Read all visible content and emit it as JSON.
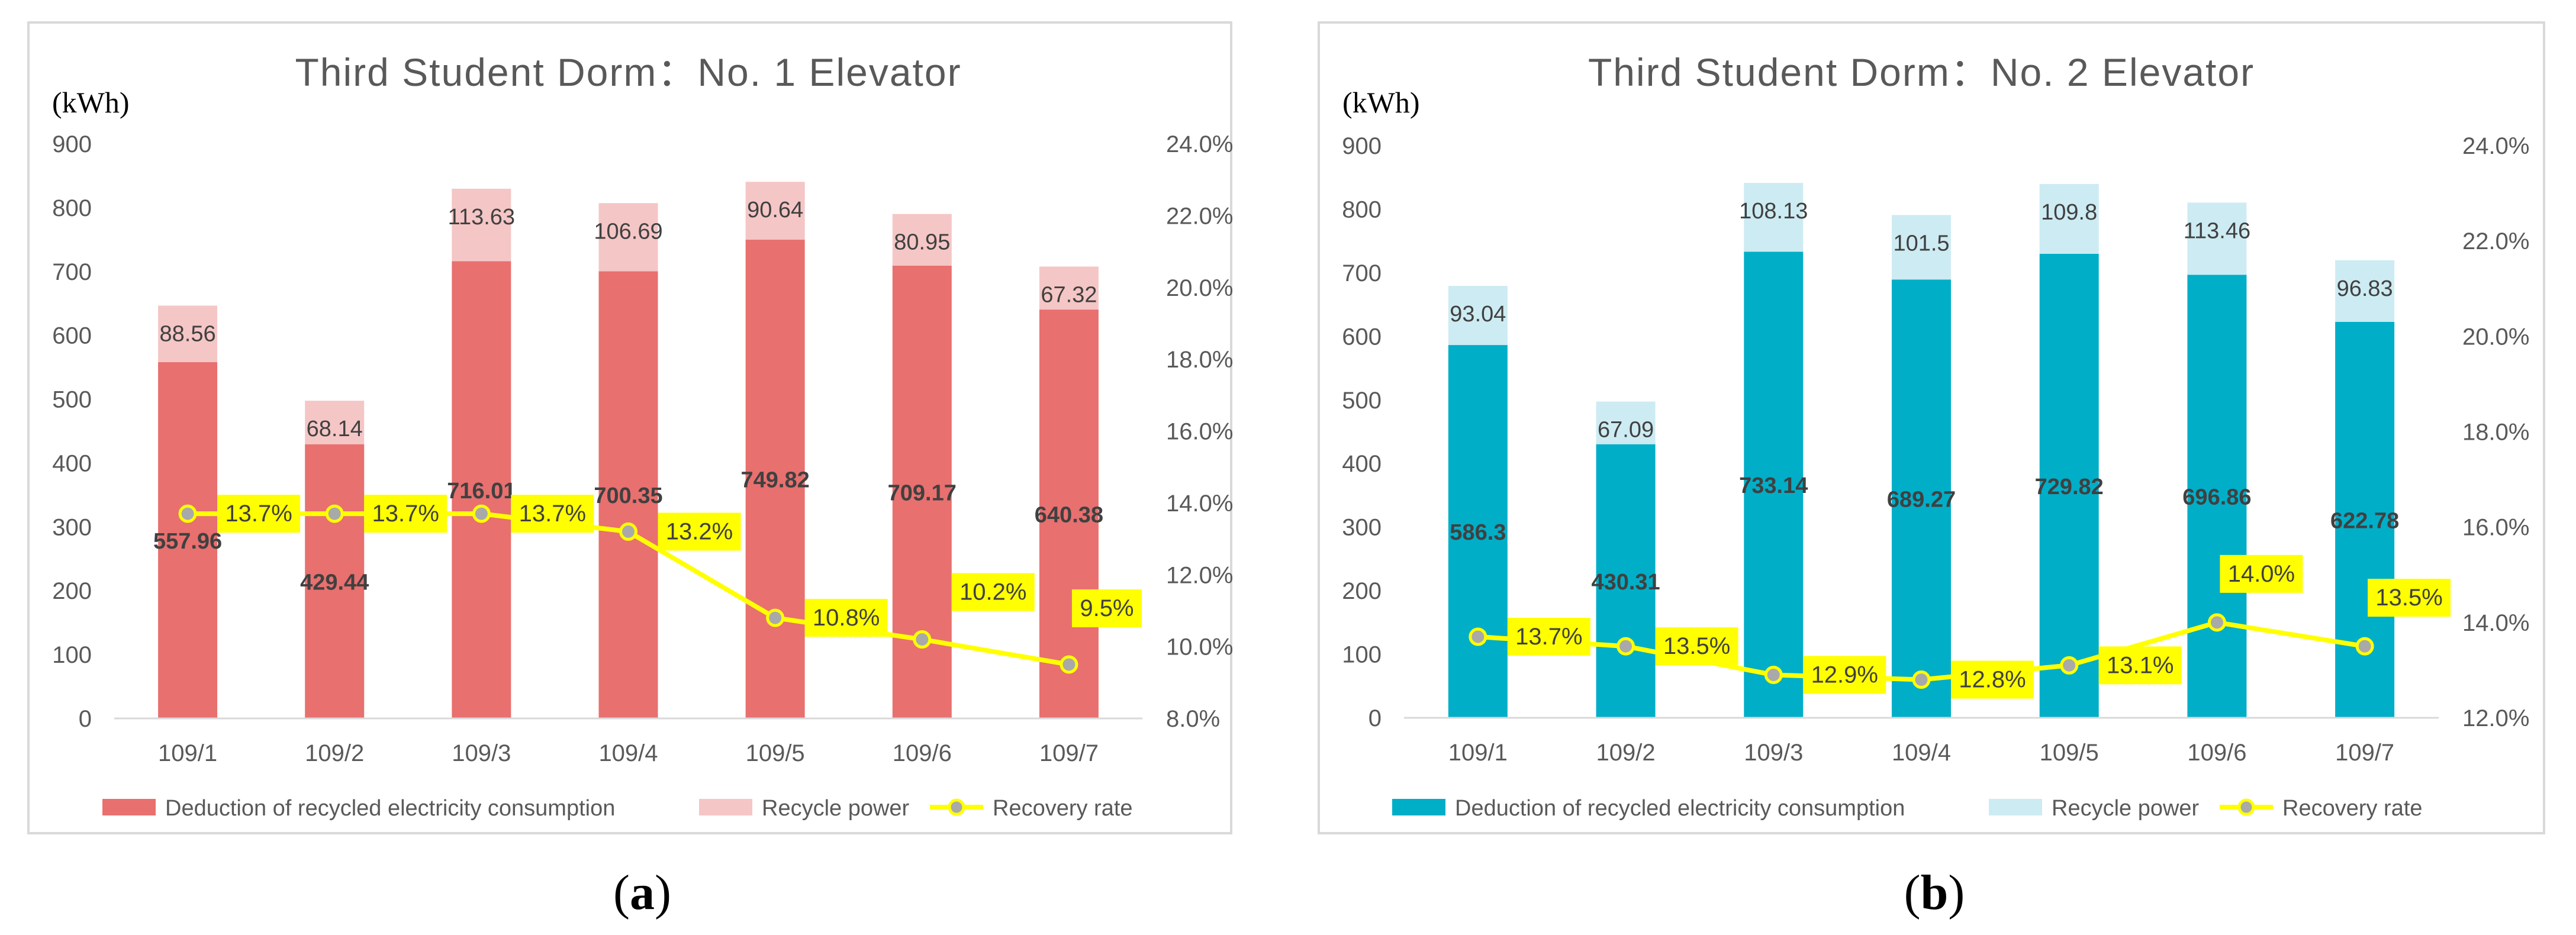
{
  "chart_data": [
    {
      "type": "bar",
      "stacked": true,
      "title": "Third Student Dorm：No. 1 Elevator",
      "ylabel": "(kWh)",
      "categories": [
        "109/1",
        "109/2",
        "109/3",
        "109/4",
        "109/5",
        "109/6",
        "109/7"
      ],
      "ylim": [
        0,
        900
      ],
      "yticks": [
        "0",
        "100",
        "200",
        "300",
        "400",
        "500",
        "600",
        "700",
        "800",
        "900"
      ],
      "y2lim": [
        8.0,
        24.0
      ],
      "y2ticks": [
        "8.0%",
        "10.0%",
        "12.0%",
        "14.0%",
        "16.0%",
        "18.0%",
        "20.0%",
        "22.0%",
        "24.0%"
      ],
      "series": [
        {
          "name": "Deduction of recycled electricity consumption",
          "values": [
            557.96,
            429.44,
            716.01,
            700.35,
            749.82,
            709.17,
            640.38
          ],
          "labels": [
            "557.96",
            "429.44",
            "716.01",
            "700.35",
            "749.82",
            "709.17",
            "640.38"
          ],
          "color": "#e8706f"
        },
        {
          "name": "Recycle power",
          "values": [
            88.56,
            68.14,
            113.63,
            106.69,
            90.64,
            80.95,
            67.32
          ],
          "labels": [
            "88.56",
            "68.14",
            "113.63",
            "106.69",
            "90.64",
            "80.95",
            "67.32"
          ],
          "color": "#f5c6c6"
        },
        {
          "name": "Recovery rate",
          "type": "line",
          "axis": "right",
          "values": [
            13.7,
            13.7,
            13.7,
            13.2,
            10.8,
            10.2,
            9.5
          ],
          "labels": [
            "13.7%",
            "13.7%",
            "13.7%",
            "13.2%",
            "10.8%",
            "10.2%",
            "9.5%"
          ],
          "color": "#ffff00"
        }
      ],
      "panel_label": "a"
    },
    {
      "type": "bar",
      "stacked": true,
      "title": "Third Student Dorm：No. 2 Elevator",
      "ylabel": "(kWh)",
      "categories": [
        "109/1",
        "109/2",
        "109/3",
        "109/4",
        "109/5",
        "109/6",
        "109/7"
      ],
      "ylim": [
        0,
        900
      ],
      "yticks": [
        "0",
        "100",
        "200",
        "300",
        "400",
        "500",
        "600",
        "700",
        "800",
        "900"
      ],
      "y2lim": [
        12.0,
        24.0
      ],
      "y2ticks": [
        "12.0%",
        "14.0%",
        "16.0%",
        "18.0%",
        "20.0%",
        "22.0%",
        "24.0%"
      ],
      "series": [
        {
          "name": "Deduction of recycled electricity consumption",
          "values": [
            586.3,
            430.31,
            733.14,
            689.27,
            729.82,
            696.86,
            622.78
          ],
          "labels": [
            "586.3",
            "430.31",
            "733.14",
            "689.27",
            "729.82",
            "696.86",
            "622.78"
          ],
          "color": "#00aec8"
        },
        {
          "name": "Recycle power",
          "values": [
            93.04,
            67.09,
            108.13,
            101.5,
            109.8,
            113.46,
            96.83
          ],
          "labels": [
            "93.04",
            "67.09",
            "108.13",
            "101.5",
            "109.8",
            "113.46",
            "96.83"
          ],
          "color": "#cdebf2"
        },
        {
          "name": "Recovery rate",
          "type": "line",
          "axis": "right",
          "values": [
            13.7,
            13.5,
            12.9,
            12.8,
            13.1,
            14.0,
            13.5
          ],
          "labels": [
            "13.7%",
            "13.5%",
            "12.9%",
            "12.8%",
            "13.1%",
            "14.0%",
            "13.5%"
          ],
          "color": "#ffff00"
        }
      ],
      "panel_label": "b"
    }
  ]
}
